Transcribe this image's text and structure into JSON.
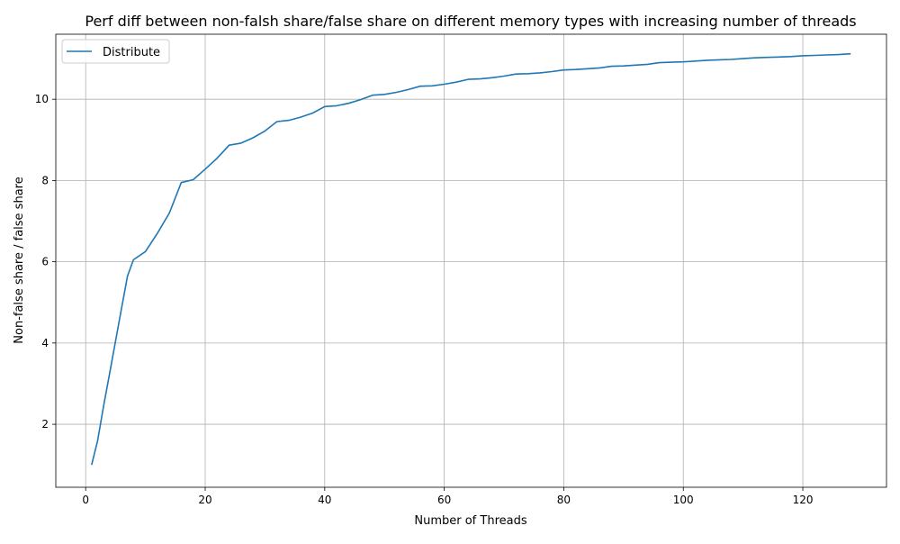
{
  "chart_data": {
    "type": "line",
    "title": "Perf diff between non-falsh share/false share on different memory types with increasing number of threads",
    "xlabel": "Number of Threads",
    "ylabel": "Non-false share / false share",
    "xlim": [
      -5,
      134
    ],
    "ylim": [
      0.45,
      11.6
    ],
    "xticks": [
      0,
      20,
      40,
      60,
      80,
      100,
      120
    ],
    "yticks": [
      2,
      4,
      6,
      8,
      10
    ],
    "grid": true,
    "legend_position": "upper-left",
    "series": [
      {
        "name": "Distribute",
        "color": "#1f77b4",
        "x": [
          1,
          2,
          3,
          4,
          5,
          6,
          7,
          8,
          10,
          12,
          14,
          16,
          18,
          20,
          22,
          24,
          26,
          28,
          30,
          32,
          34,
          36,
          38,
          40,
          42,
          44,
          46,
          48,
          50,
          52,
          54,
          56,
          58,
          60,
          62,
          64,
          66,
          68,
          70,
          72,
          74,
          76,
          78,
          80,
          82,
          84,
          86,
          88,
          90,
          92,
          94,
          96,
          98,
          100,
          102,
          104,
          106,
          108,
          110,
          112,
          114,
          116,
          118,
          120,
          122,
          124,
          126,
          128
        ],
        "y": [
          1.0,
          1.6,
          2.45,
          3.25,
          4.05,
          4.85,
          5.65,
          6.05,
          6.25,
          6.7,
          7.2,
          7.95,
          8.02,
          8.28,
          8.55,
          8.87,
          8.92,
          9.05,
          9.22,
          9.45,
          9.48,
          9.56,
          9.66,
          9.82,
          9.84,
          9.9,
          9.99,
          10.1,
          10.12,
          10.17,
          10.24,
          10.32,
          10.33,
          10.37,
          10.42,
          10.49,
          10.5,
          10.53,
          10.57,
          10.62,
          10.63,
          10.65,
          10.68,
          10.72,
          10.73,
          10.75,
          10.77,
          10.81,
          10.82,
          10.84,
          10.86,
          10.9,
          10.91,
          10.92,
          10.94,
          10.96,
          10.97,
          10.98,
          11.0,
          11.02,
          11.03,
          11.04,
          11.05,
          11.07,
          11.08,
          11.09,
          11.1,
          11.12
        ]
      }
    ]
  }
}
